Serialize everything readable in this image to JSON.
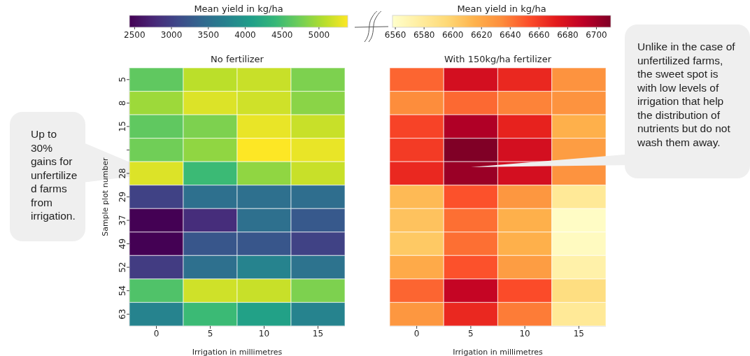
{
  "chart_data": [
    {
      "type": "heatmap",
      "title": "No fertilizer",
      "xlabel": "Irrigation in millimetres",
      "ylabel": "Sample plot number",
      "clabel": "Mean yield in kg/ha",
      "categories": [
        "0",
        "5",
        "10",
        "15"
      ],
      "y_categories": [
        "5",
        "8",
        "15",
        null,
        "28",
        "29",
        "37",
        "49",
        "52",
        "54",
        "63"
      ],
      "cells": [
        [
          4650,
          5090,
          5150,
          4800
        ],
        [
          4950,
          5240,
          5180,
          4860
        ],
        [
          4650,
          4800,
          5300,
          5150
        ],
        [
          4740,
          4890,
          5390,
          5300
        ],
        [
          5240,
          4440,
          4890,
          5150
        ],
        [
          3020,
          3520,
          3520,
          3490
        ],
        [
          2430,
          2810,
          3520,
          3260
        ],
        [
          2430,
          3230,
          3230,
          3020
        ],
        [
          2960,
          3520,
          3760,
          3550
        ],
        [
          4560,
          5180,
          5150,
          4800
        ],
        [
          3760,
          4440,
          4120,
          3760
        ]
      ],
      "clim": [
        2430,
        5390
      ],
      "cticks": [
        2500,
        3000,
        3500,
        4000,
        4500,
        5000
      ],
      "annotations": [
        "Up to 30% gains for unfertilized farms from irrigation."
      ]
    },
    {
      "type": "heatmap",
      "title": "With 150kg/ha fertilizer",
      "xlabel": "Irrigation in millimetres",
      "clabel": "Mean yield in kg/ha",
      "categories": [
        "0",
        "5",
        "10",
        "15"
      ],
      "y_categories": [
        "5",
        "8",
        "15",
        null,
        "28",
        "29",
        "37",
        "49",
        "52",
        "54",
        "63"
      ],
      "cells": [
        [
          6646,
          6680,
          6667,
          6631
        ],
        [
          6634,
          6645,
          6637,
          6631
        ],
        [
          6657,
          6695,
          6669,
          6616
        ],
        [
          6660,
          6710,
          6680,
          6626
        ],
        [
          6667,
          6702,
          6680,
          6631
        ],
        [
          6611,
          6652,
          6629,
          6581
        ],
        [
          6607,
          6643,
          6616,
          6561
        ],
        [
          6604,
          6643,
          6616,
          6563
        ],
        [
          6619,
          6652,
          6626,
          6573
        ],
        [
          6646,
          6687,
          6654,
          6591
        ],
        [
          6629,
          6667,
          6639,
          6581
        ]
      ],
      "clim": [
        6558,
        6710
      ],
      "cticks": [
        6560,
        6580,
        6600,
        6620,
        6640,
        6660,
        6680,
        6700
      ],
      "tick_labels": "x",
      "annotations": [
        "Unlike in the case of unfertilized farms, the sweet spot is with low levels of irrigation that help the distribution of nutrients but do not wash them away."
      ]
    }
  ]
}
